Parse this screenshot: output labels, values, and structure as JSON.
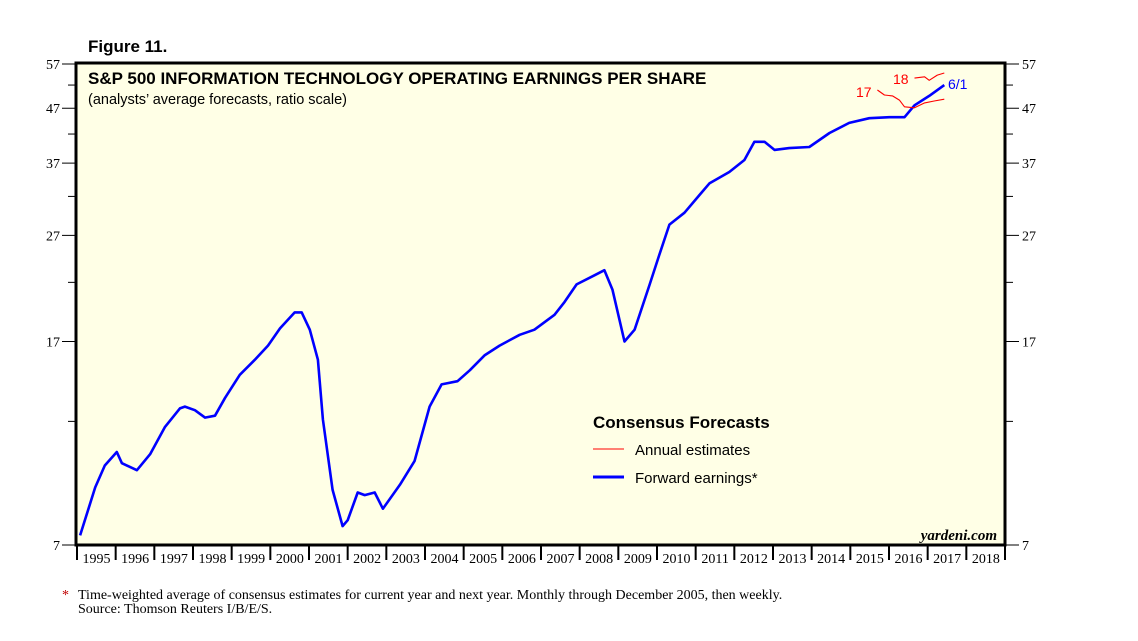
{
  "figure_label": "Figure 11.",
  "chart_data": {
    "type": "line",
    "title": "S&P 500 INFORMATION TECHNOLOGY OPERATING EARNINGS PER SHARE",
    "subtitle": "(analysts’ average forecasts, ratio scale)",
    "y_scale": "log",
    "ylim": [
      7,
      57
    ],
    "xlim": [
      1995,
      2019
    ],
    "y_ticks": [
      7,
      17,
      27,
      37,
      47,
      57
    ],
    "y_minor_ticks": [
      12,
      22,
      32,
      42,
      52
    ],
    "x_tick_labels": [
      "1995",
      "1996",
      "1997",
      "1998",
      "1999",
      "2000",
      "2001",
      "2002",
      "2003",
      "2004",
      "2005",
      "2006",
      "2007",
      "2008",
      "2009",
      "2010",
      "2011",
      "2012",
      "2013",
      "2014",
      "2015",
      "2016",
      "2017",
      "2018"
    ],
    "grid": false,
    "background_color": "#ffffe6",
    "legend": {
      "title": "Consensus Forecasts",
      "placement": "bottom-center",
      "entries": [
        {
          "label": "Annual estimates",
          "color": "#ff0000"
        },
        {
          "label": "Forward earnings*",
          "color": "#0000ff"
        }
      ]
    },
    "series": [
      {
        "name": "Forward earnings*",
        "color": "#0000ff",
        "end_label": "6/1",
        "x": [
          1995.08,
          1995.47,
          1995.72,
          1996.03,
          1996.16,
          1996.55,
          1996.89,
          1997.27,
          1997.66,
          1997.79,
          1998.05,
          1998.31,
          1998.57,
          1998.83,
          1999.21,
          1999.6,
          1999.94,
          2000.25,
          2000.63,
          2000.81,
          2001.02,
          2001.23,
          2001.36,
          2001.61,
          2001.87,
          2002.0,
          2002.26,
          2002.44,
          2002.7,
          2002.91,
          2003.35,
          2003.73,
          2004.12,
          2004.43,
          2004.84,
          2005.16,
          2005.54,
          2005.93,
          2006.45,
          2006.83,
          2007.35,
          2007.61,
          2007.92,
          2008.39,
          2008.64,
          2008.85,
          2009.16,
          2009.42,
          2009.81,
          2010.06,
          2010.32,
          2010.71,
          2011.1,
          2011.36,
          2011.87,
          2012.26,
          2012.52,
          2012.78,
          2013.04,
          2013.42,
          2013.94,
          2014.46,
          2014.97,
          2015.49,
          2016.01,
          2016.4,
          2016.66,
          2017.04,
          2017.43
        ],
        "y": [
          7.3,
          9.0,
          9.9,
          10.5,
          10.0,
          9.7,
          10.4,
          11.7,
          12.7,
          12.8,
          12.6,
          12.2,
          12.3,
          13.3,
          14.7,
          15.7,
          16.7,
          18.0,
          19.3,
          19.3,
          17.9,
          15.7,
          12.1,
          8.9,
          7.6,
          7.8,
          8.8,
          8.7,
          8.8,
          8.2,
          9.1,
          10.1,
          12.8,
          14.1,
          14.3,
          15.0,
          16.0,
          16.7,
          17.5,
          17.9,
          19.1,
          20.2,
          21.8,
          22.7,
          23.2,
          21.3,
          17.0,
          17.9,
          21.8,
          24.8,
          28.3,
          29.8,
          32.2,
          33.9,
          35.6,
          37.5,
          40.6,
          40.6,
          39.2,
          39.5,
          39.7,
          42.2,
          44.1,
          45.0,
          45.2,
          45.2,
          47.6,
          49.6,
          52.0
        ]
      },
      {
        "name": "17",
        "color": "#ff0000",
        "x": [
          2015.7,
          2015.88,
          2016.09,
          2016.27,
          2016.4,
          2016.66,
          2016.92,
          2017.17,
          2017.43
        ],
        "y": [
          50.9,
          49.8,
          49.6,
          48.7,
          47.3,
          47.1,
          48.1,
          48.5,
          48.9
        ]
      },
      {
        "name": "18",
        "color": "#ff0000",
        "x": [
          2016.66,
          2016.92,
          2017.04,
          2017.25,
          2017.43
        ],
        "y": [
          53.6,
          53.9,
          53.1,
          54.3,
          54.8
        ]
      }
    ],
    "annotations": [
      "17",
      "18",
      "6/1"
    ],
    "watermark": "yardeni.com"
  },
  "footnote": {
    "marker": "*",
    "text": "Time-weighted average of consensus estimates for current year and next year. Monthly through December 2005, then weekly.",
    "source": "Source: Thomson Reuters I/B/E/S."
  }
}
